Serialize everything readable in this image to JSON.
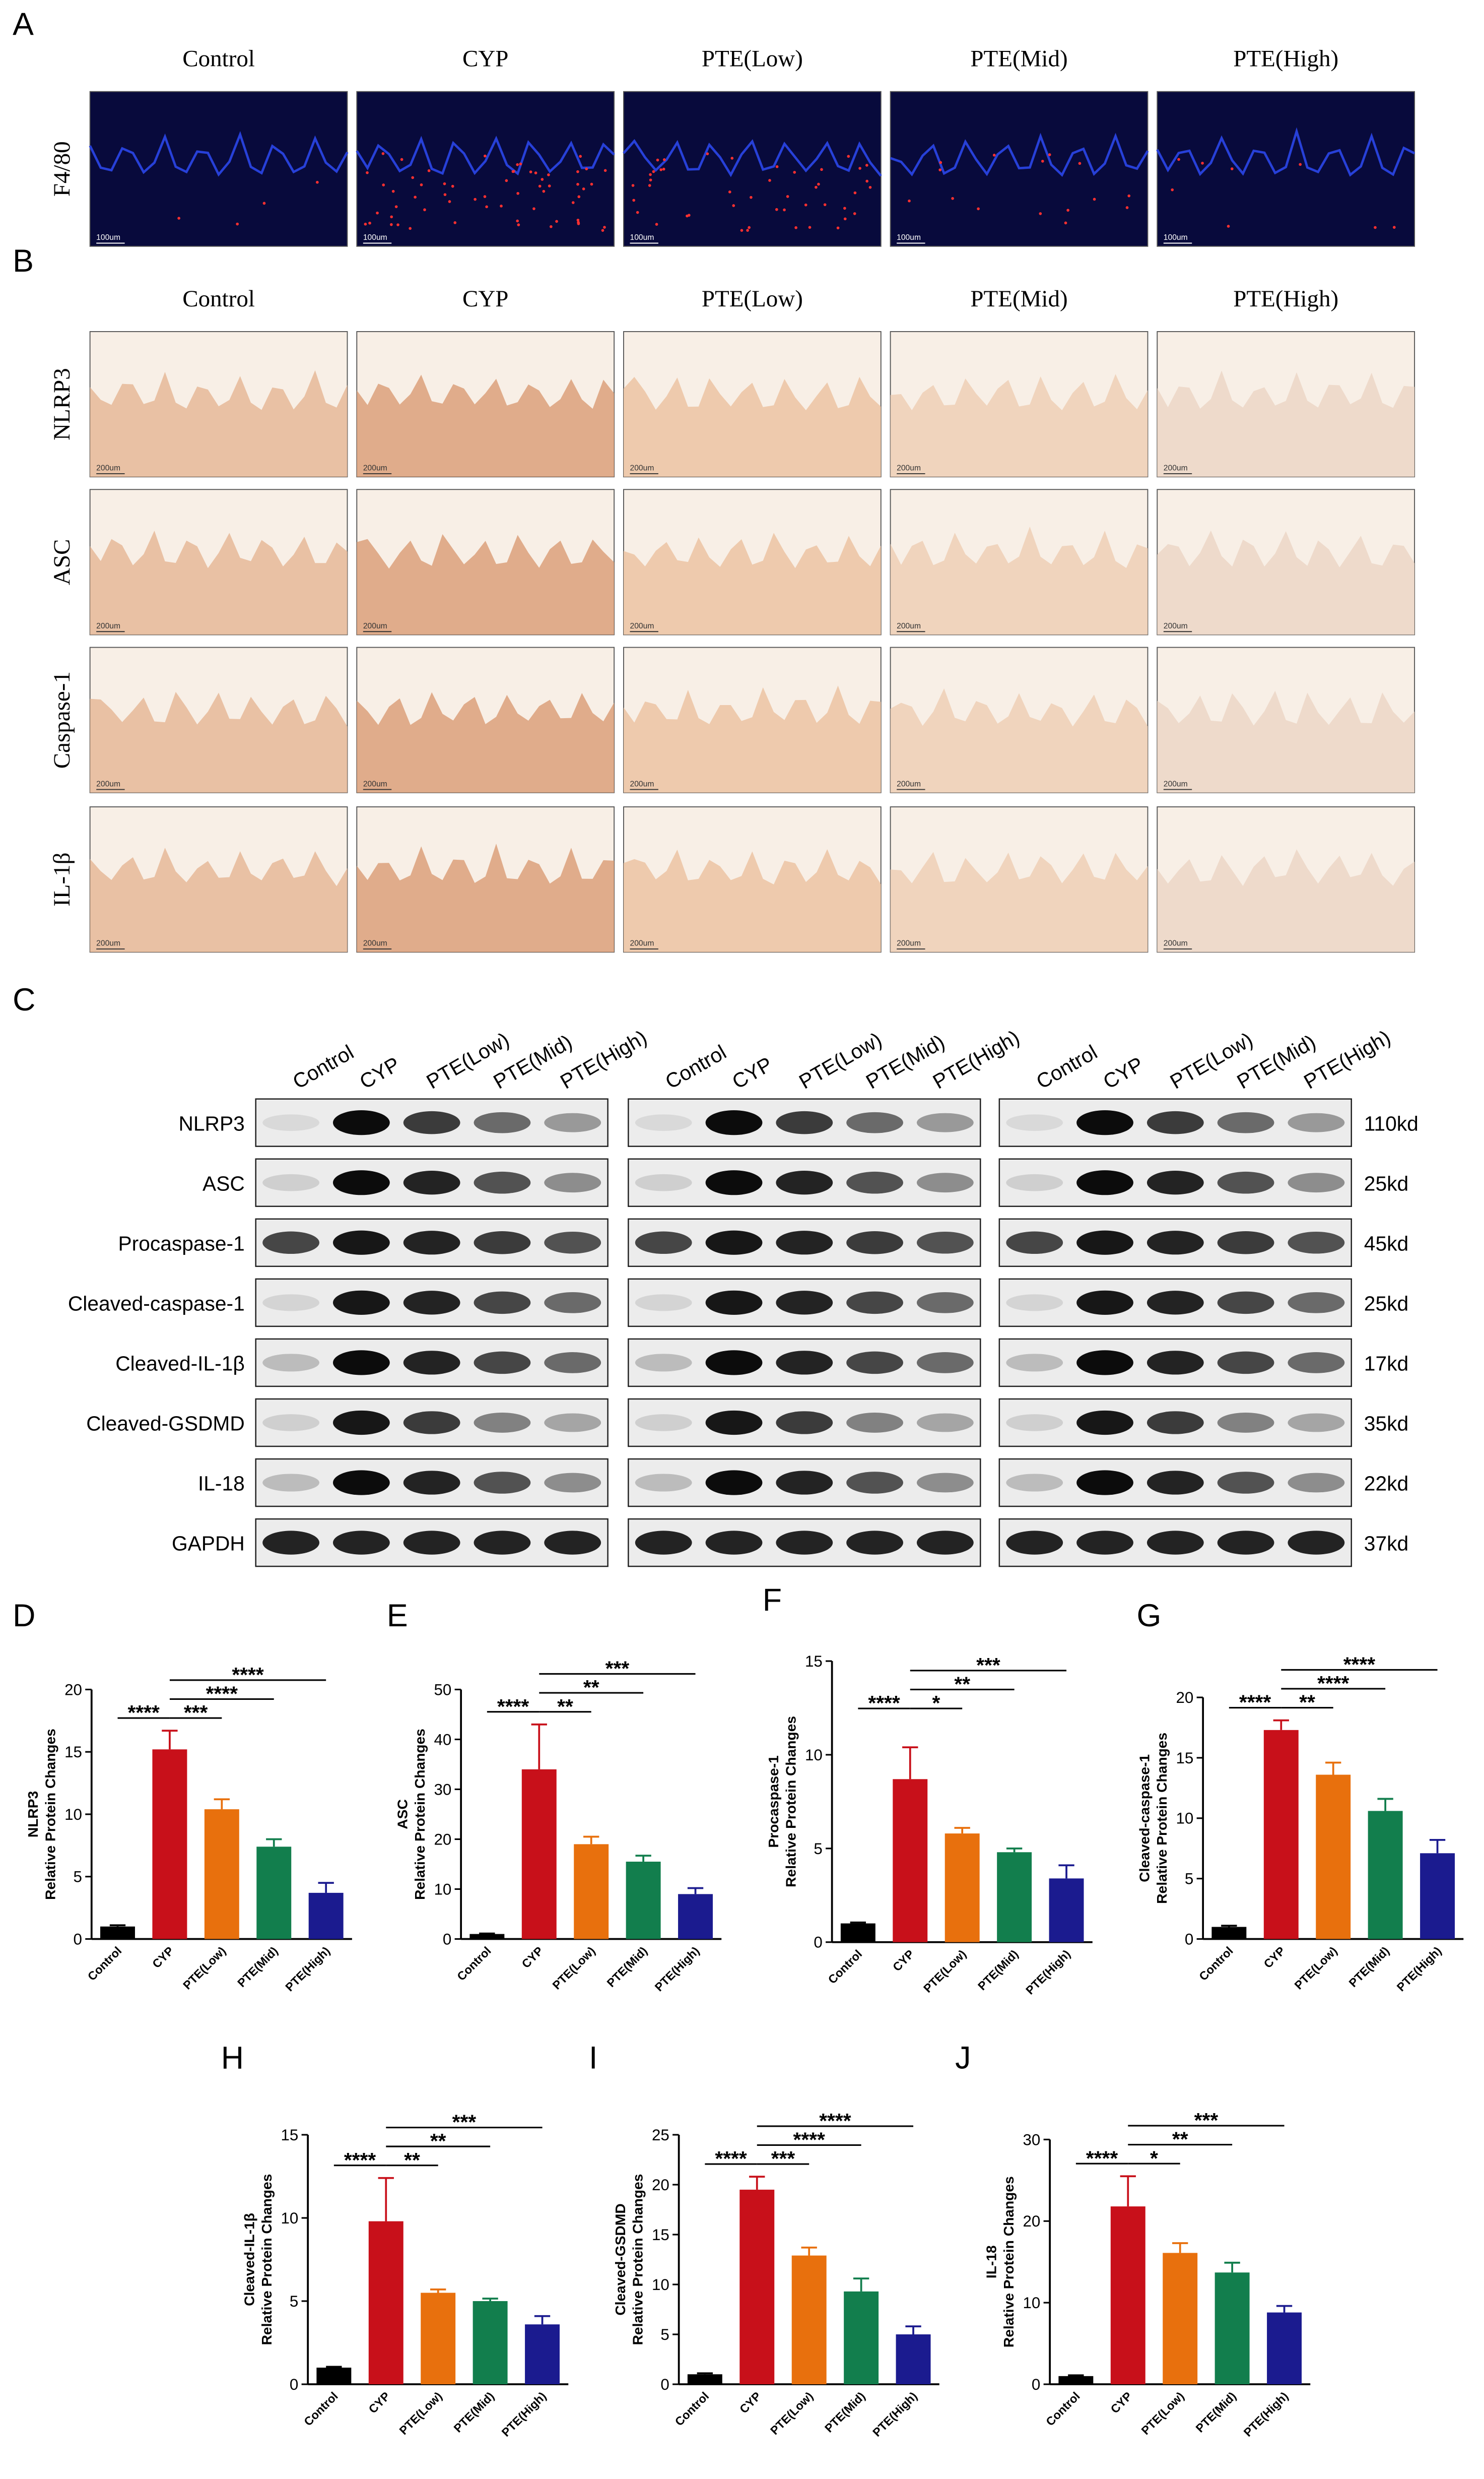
{
  "panels": {
    "A": {
      "letter": "A",
      "groups": [
        "Control",
        "CYP",
        "PTE(Low)",
        "PTE(Mid)",
        "PTE(High)"
      ],
      "rows": [
        "F4/80"
      ],
      "scale_bar": "100um"
    },
    "B": {
      "letter": "B",
      "groups": [
        "Control",
        "CYP",
        "PTE(Low)",
        "PTE(Mid)",
        "PTE(High)"
      ],
      "rows": [
        "NLRP3",
        "ASC",
        "Caspase-1",
        "IL-1β"
      ],
      "scale_bar": "200um"
    },
    "C": {
      "letter": "C",
      "lanes": [
        "Control",
        "CYP",
        "PTE(Low)",
        "PTE(Mid)",
        "PTE(High)"
      ],
      "proteins": [
        "NLRP3",
        "ASC",
        "Procaspase-1",
        "Cleaved-caspase-1",
        "Cleaved-IL-1β",
        "Cleaved-GSDMD",
        "IL-18",
        "GAPDH"
      ],
      "sizes": [
        "110kd",
        "25kd",
        "45kd",
        "25kd",
        "17kd",
        "35kd",
        "22kd",
        "37kd"
      ]
    }
  },
  "chart_data": [
    {
      "type": "bar",
      "panel": "D",
      "ylabel": [
        "NLRP3",
        "Relative Protein Changes"
      ],
      "categories": [
        "Control",
        "CYP",
        "PTE(Low)",
        "PTE(Mid)",
        "PTE(High)"
      ],
      "values": [
        1,
        15.2,
        10.4,
        7.4,
        3.7
      ],
      "errors": [
        0.1,
        1.5,
        0.8,
        0.6,
        0.8
      ],
      "colors": [
        "#000000",
        "#c8101a",
        "#e8700d",
        "#127e4d",
        "#1b1b8f"
      ],
      "ylim": [
        0,
        20
      ],
      "yticks": [
        0,
        5,
        10,
        15,
        20
      ],
      "significance": [
        {
          "pair": [
            "Control",
            "CYP"
          ],
          "label": "****"
        },
        {
          "pair": [
            "CYP",
            "PTE(Low)"
          ],
          "label": "***"
        },
        {
          "pair": [
            "CYP",
            "PTE(Mid)"
          ],
          "label": "****"
        },
        {
          "pair": [
            "CYP",
            "PTE(High)"
          ],
          "label": "****"
        }
      ]
    },
    {
      "type": "bar",
      "panel": "E",
      "ylabel": [
        "ASC",
        "Relative Protein Changes"
      ],
      "categories": [
        "Control",
        "CYP",
        "PTE(Low)",
        "PTE(Mid)",
        "PTE(High)"
      ],
      "values": [
        1,
        34,
        19,
        15.5,
        9
      ],
      "errors": [
        0.1,
        9,
        1.5,
        1.2,
        1.2
      ],
      "colors": [
        "#000000",
        "#c8101a",
        "#e8700d",
        "#127e4d",
        "#1b1b8f"
      ],
      "ylim": [
        0,
        50
      ],
      "yticks": [
        0,
        10,
        20,
        30,
        40,
        50
      ],
      "significance": [
        {
          "pair": [
            "Control",
            "CYP"
          ],
          "label": "****"
        },
        {
          "pair": [
            "CYP",
            "PTE(Low)"
          ],
          "label": "**"
        },
        {
          "pair": [
            "CYP",
            "PTE(Mid)"
          ],
          "label": "**"
        },
        {
          "pair": [
            "CYP",
            "PTE(High)"
          ],
          "label": "***"
        }
      ]
    },
    {
      "type": "bar",
      "panel": "F",
      "ylabel": [
        "Procaspase-1",
        "Relative Protein Changes"
      ],
      "categories": [
        "Control",
        "CYP",
        "PTE(Low)",
        "PTE(Mid)",
        "PTE(High)"
      ],
      "values": [
        1,
        8.7,
        5.8,
        4.8,
        3.4
      ],
      "errors": [
        0.05,
        1.7,
        0.3,
        0.2,
        0.7
      ],
      "colors": [
        "#000000",
        "#c8101a",
        "#e8700d",
        "#127e4d",
        "#1b1b8f"
      ],
      "ylim": [
        0,
        15
      ],
      "yticks": [
        0,
        5,
        10,
        15
      ],
      "significance": [
        {
          "pair": [
            "Control",
            "CYP"
          ],
          "label": "****"
        },
        {
          "pair": [
            "CYP",
            "PTE(Low)"
          ],
          "label": "*"
        },
        {
          "pair": [
            "CYP",
            "PTE(Mid)"
          ],
          "label": "**"
        },
        {
          "pair": [
            "CYP",
            "PTE(High)"
          ],
          "label": "***"
        }
      ]
    },
    {
      "type": "bar",
      "panel": "G",
      "ylabel": [
        "Cleaved-caspase-1",
        "Relative Protein Changes"
      ],
      "categories": [
        "Control",
        "CYP",
        "PTE(Low)",
        "PTE(Mid)",
        "PTE(High)"
      ],
      "values": [
        1,
        17.3,
        13.6,
        10.6,
        7.1
      ],
      "errors": [
        0.1,
        0.8,
        1,
        1,
        1.1
      ],
      "colors": [
        "#000000",
        "#c8101a",
        "#e8700d",
        "#127e4d",
        "#1b1b8f"
      ],
      "ylim": [
        0,
        20
      ],
      "yticks": [
        0,
        5,
        10,
        15,
        20
      ],
      "significance": [
        {
          "pair": [
            "Control",
            "CYP"
          ],
          "label": "****"
        },
        {
          "pair": [
            "CYP",
            "PTE(Low)"
          ],
          "label": "**"
        },
        {
          "pair": [
            "CYP",
            "PTE(Mid)"
          ],
          "label": "****"
        },
        {
          "pair": [
            "CYP",
            "PTE(High)"
          ],
          "label": "****"
        }
      ]
    },
    {
      "type": "bar",
      "panel": "H",
      "ylabel": [
        "Cleaved-IL-1β",
        "Relative Protein Changes"
      ],
      "categories": [
        "Control",
        "CYP",
        "PTE(Low)",
        "PTE(Mid)",
        "PTE(High)"
      ],
      "values": [
        1,
        9.8,
        5.5,
        5,
        3.6
      ],
      "errors": [
        0.05,
        2.6,
        0.2,
        0.15,
        0.5
      ],
      "colors": [
        "#000000",
        "#c8101a",
        "#e8700d",
        "#127e4d",
        "#1b1b8f"
      ],
      "ylim": [
        0,
        15
      ],
      "yticks": [
        0,
        5,
        10,
        15
      ],
      "significance": [
        {
          "pair": [
            "Control",
            "CYP"
          ],
          "label": "****"
        },
        {
          "pair": [
            "CYP",
            "PTE(Low)"
          ],
          "label": "**"
        },
        {
          "pair": [
            "CYP",
            "PTE(Mid)"
          ],
          "label": "**"
        },
        {
          "pair": [
            "CYP",
            "PTE(High)"
          ],
          "label": "***"
        }
      ]
    },
    {
      "type": "bar",
      "panel": "I",
      "ylabel": [
        "Cleaved-GSDMD",
        "Relative Protein Changes"
      ],
      "categories": [
        "Control",
        "CYP",
        "PTE(Low)",
        "PTE(Mid)",
        "PTE(High)"
      ],
      "values": [
        1,
        19.5,
        12.9,
        9.3,
        5
      ],
      "errors": [
        0.1,
        1.3,
        0.8,
        1.3,
        0.8
      ],
      "colors": [
        "#000000",
        "#c8101a",
        "#e8700d",
        "#127e4d",
        "#1b1b8f"
      ],
      "ylim": [
        0,
        25
      ],
      "yticks": [
        0,
        5,
        10,
        15,
        20,
        25
      ],
      "significance": [
        {
          "pair": [
            "Control",
            "CYP"
          ],
          "label": "****"
        },
        {
          "pair": [
            "CYP",
            "PTE(Low)"
          ],
          "label": "***"
        },
        {
          "pair": [
            "CYP",
            "PTE(Mid)"
          ],
          "label": "****"
        },
        {
          "pair": [
            "CYP",
            "PTE(High)"
          ],
          "label": "****"
        }
      ]
    },
    {
      "type": "bar",
      "panel": "J",
      "ylabel": [
        "IL-18",
        "Relative Protein Changes"
      ],
      "categories": [
        "Control",
        "CYP",
        "PTE(Low)",
        "PTE(Mid)",
        "PTE(High)"
      ],
      "values": [
        1,
        21.8,
        16.1,
        13.7,
        8.8
      ],
      "errors": [
        0.1,
        3.7,
        1.2,
        1.2,
        0.8
      ],
      "colors": [
        "#000000",
        "#c8101a",
        "#e8700d",
        "#127e4d",
        "#1b1b8f"
      ],
      "ylim": [
        0,
        30
      ],
      "yticks": [
        0,
        10,
        20,
        30
      ],
      "significance": [
        {
          "pair": [
            "Control",
            "CYP"
          ],
          "label": "****"
        },
        {
          "pair": [
            "CYP",
            "PTE(Low)"
          ],
          "label": "*"
        },
        {
          "pair": [
            "CYP",
            "PTE(Mid)"
          ],
          "label": "**"
        },
        {
          "pair": [
            "CYP",
            "PTE(High)"
          ],
          "label": "***"
        }
      ]
    }
  ]
}
